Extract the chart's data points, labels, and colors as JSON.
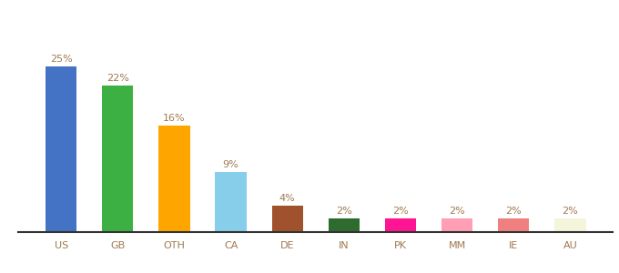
{
  "categories": [
    "US",
    "GB",
    "OTH",
    "CA",
    "DE",
    "IN",
    "PK",
    "MM",
    "IE",
    "AU"
  ],
  "values": [
    25,
    22,
    16,
    9,
    4,
    2,
    2,
    2,
    2,
    2
  ],
  "bar_colors": [
    "#4472c4",
    "#3cb043",
    "#ffa500",
    "#87ceeb",
    "#a0522d",
    "#2e6b2e",
    "#ff1493",
    "#ff9eb5",
    "#f08080",
    "#f5f5dc"
  ],
  "label_color": "#a07850",
  "label_fontsize": 8,
  "xlabel_fontsize": 8,
  "xlabel_color": "#a07850",
  "background_color": "#ffffff",
  "ylim": [
    0,
    30
  ],
  "bar_width": 0.55
}
